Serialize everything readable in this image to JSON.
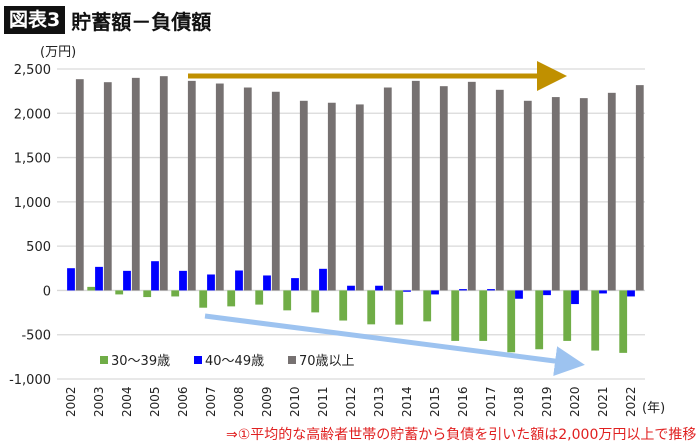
{
  "header": {
    "badge": "図表3",
    "title": "貯蓄額－負債額"
  },
  "note": "⇒①平均的な高齢者世帯の貯蓄から負債を引いた額は2,000万円以上で推移",
  "chart_data": {
    "type": "bar",
    "yunit": "(万円)",
    "xunit": "(年)",
    "ylim": [
      -1000,
      2500
    ],
    "yticks": [
      -1000,
      -500,
      0,
      500,
      1000,
      1500,
      2000,
      2500
    ],
    "ytick_labels": [
      "-1,000",
      "-500",
      "0",
      "500",
      "1,000",
      "1,500",
      "2,000",
      "2,500"
    ],
    "grid": true,
    "legend_position": "bottom-left inside",
    "categories": [
      "2002",
      "2003",
      "2004",
      "2005",
      "2006",
      "2007",
      "2008",
      "2009",
      "2010",
      "2011",
      "2012",
      "2013",
      "2014",
      "2015",
      "2016",
      "2017",
      "2018",
      "2019",
      "2020",
      "2021",
      "2022"
    ],
    "series": [
      {
        "name": "30～39歳",
        "color": "#70ad47",
        "values": [
          0,
          40,
          -45,
          -75,
          -68,
          -195,
          -180,
          -160,
          -225,
          -248,
          -340,
          -383,
          -386,
          -349,
          -570,
          -570,
          -698,
          -664,
          -570,
          -679,
          -705
        ]
      },
      {
        "name": "40～49歳",
        "color": "#0000ff",
        "values": [
          251,
          266,
          221,
          330,
          221,
          180,
          225,
          169,
          139,
          244,
          53,
          53,
          -15,
          -45,
          15,
          15,
          -94,
          -53,
          -154,
          -34,
          -68
        ]
      },
      {
        "name": "70歳以上",
        "color": "#767171",
        "values": [
          2385,
          2351,
          2400,
          2419,
          2366,
          2336,
          2291,
          2243,
          2141,
          2119,
          2100,
          2291,
          2366,
          2306,
          2355,
          2265,
          2141,
          2183,
          2171,
          2231,
          2318
        ]
      }
    ],
    "annotations": [
      {
        "type": "arrow",
        "color": "#c09000",
        "meaning": "flat trend",
        "from_year": "2006",
        "to_year": "2020"
      },
      {
        "type": "arrow",
        "color": "#9dc3f0",
        "meaning": "declining trend",
        "from_year": "2007",
        "to_year": "2020"
      }
    ]
  }
}
